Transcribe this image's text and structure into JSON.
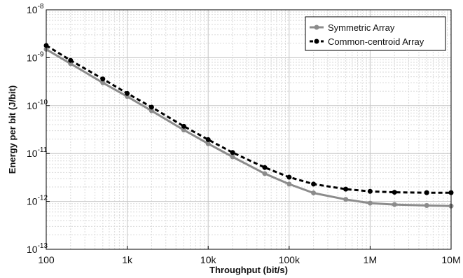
{
  "chart_data": {
    "type": "line",
    "title": "",
    "xlabel": "Throughput (bit/s)",
    "ylabel": "Energy per bit (J/bit)",
    "xscale": "log",
    "yscale": "log",
    "xlim": [
      100,
      10000000
    ],
    "ylim": [
      1e-13,
      1e-08
    ],
    "grid": true,
    "legend_position": "top-right",
    "x": [
      100,
      200,
      500,
      1000,
      2000,
      5000,
      10000,
      20000,
      50000,
      100000,
      200000,
      500000,
      1000000,
      2000000,
      5000000,
      10000000
    ],
    "series": [
      {
        "name": "Symmetric Array",
        "color": "#8c8c8c",
        "style": "solid",
        "values": [
          1.5e-09,
          7.5e-10,
          3e-10,
          1.55e-10,
          7.8e-11,
          3.1e-11,
          1.6e-11,
          8.5e-12,
          3.8e-12,
          2.3e-12,
          1.5e-12,
          1.1e-12,
          9.2e-13,
          8.6e-13,
          8.2e-13,
          8e-13
        ]
      },
      {
        "name": "Common-centroid Array",
        "color": "#000000",
        "style": "dashed",
        "values": [
          1.8e-09,
          8.8e-10,
          3.6e-10,
          1.8e-10,
          9.3e-11,
          3.7e-11,
          1.95e-11,
          1.05e-11,
          5.1e-12,
          3.2e-12,
          2.3e-12,
          1.8e-12,
          1.62e-12,
          1.55e-12,
          1.52e-12,
          1.52e-12
        ]
      }
    ],
    "xticks": [
      {
        "value": 100,
        "label": "100"
      },
      {
        "value": 1000,
        "label": "1k"
      },
      {
        "value": 10000,
        "label": "10k"
      },
      {
        "value": 100000,
        "label": "100k"
      },
      {
        "value": 1000000,
        "label": "1M"
      },
      {
        "value": 10000000,
        "label": "10M"
      }
    ],
    "yticks": [
      {
        "value": 1e-13,
        "base": "10",
        "exp": "-13"
      },
      {
        "value": 1e-12,
        "base": "10",
        "exp": "-12"
      },
      {
        "value": 1e-11,
        "base": "10",
        "exp": "-11"
      },
      {
        "value": 1e-10,
        "base": "10",
        "exp": "-10"
      },
      {
        "value": 1e-09,
        "base": "10",
        "exp": "-9"
      },
      {
        "value": 1e-08,
        "base": "10",
        "exp": "-8"
      }
    ]
  }
}
